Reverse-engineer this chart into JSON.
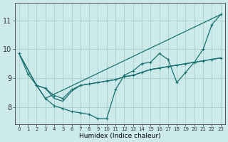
{
  "xlabel": "Humidex (Indice chaleur)",
  "background_color": "#cceaea",
  "grid_color": "#aacece",
  "line_color": "#1a7070",
  "xlim": [
    -0.5,
    23.5
  ],
  "ylim": [
    7.4,
    11.6
  ],
  "xticks": [
    0,
    1,
    2,
    3,
    4,
    5,
    6,
    7,
    8,
    9,
    10,
    11,
    12,
    13,
    14,
    15,
    16,
    17,
    18,
    19,
    20,
    21,
    22,
    23
  ],
  "yticks": [
    8,
    9,
    10,
    11
  ],
  "line_A_no_marker": {
    "x": [
      0,
      2,
      3,
      23
    ],
    "y": [
      9.85,
      8.75,
      8.3,
      11.2
    ]
  },
  "line_B_markers": {
    "x": [
      0,
      1,
      2,
      3,
      4,
      5,
      6,
      7,
      8,
      9,
      10,
      11,
      12,
      13,
      14,
      15,
      16,
      17,
      18,
      19,
      20,
      21,
      22,
      23
    ],
    "y": [
      9.85,
      9.15,
      8.75,
      8.3,
      8.05,
      7.95,
      7.85,
      7.8,
      7.75,
      7.6,
      7.6,
      8.6,
      9.1,
      9.25,
      9.5,
      9.55,
      9.85,
      9.65,
      8.85,
      9.2,
      9.55,
      10.0,
      10.85,
      11.2
    ]
  },
  "line_C_markers": {
    "x": [
      2,
      3,
      4,
      5,
      6,
      7,
      8,
      9,
      10,
      11,
      12,
      13,
      14,
      15,
      16,
      17,
      18,
      19,
      20,
      21,
      22,
      23
    ],
    "y": [
      8.75,
      8.65,
      8.4,
      8.3,
      8.6,
      8.75,
      8.8,
      8.85,
      8.9,
      8.95,
      9.05,
      9.1,
      9.2,
      9.3,
      9.35,
      9.4,
      9.45,
      9.5,
      9.55,
      9.6,
      9.65,
      9.7
    ]
  },
  "line_D_no_marker": {
    "x": [
      0,
      2,
      3,
      4,
      5,
      6,
      7,
      8,
      9,
      10,
      11,
      12,
      13,
      14,
      15,
      16,
      17,
      18,
      19,
      20,
      21,
      22,
      23
    ],
    "y": [
      9.85,
      8.75,
      8.65,
      8.3,
      8.2,
      8.55,
      8.75,
      8.8,
      8.85,
      8.9,
      8.95,
      9.05,
      9.1,
      9.2,
      9.3,
      9.35,
      9.4,
      9.45,
      9.5,
      9.55,
      9.6,
      9.65,
      9.7
    ]
  }
}
